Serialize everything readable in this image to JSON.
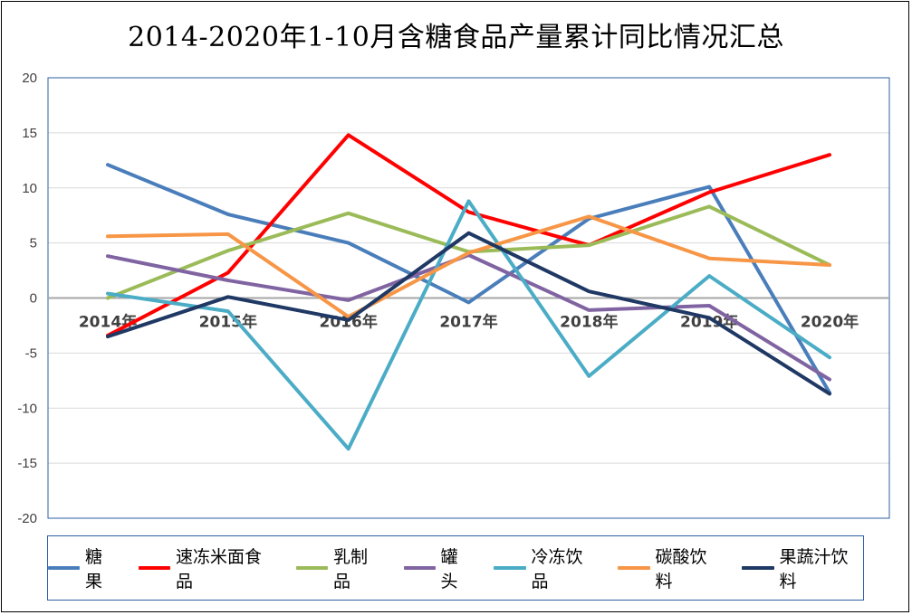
{
  "chart_data": {
    "type": "line",
    "title": "2014-2020年1-10月含糖食品产量累计同比情况汇总",
    "categories": [
      "2014年",
      "2015年",
      "2016年",
      "2017年",
      "2018年",
      "2019年",
      "2020年"
    ],
    "ylim": [
      -20,
      20
    ],
    "yticks": [
      20,
      15,
      10,
      5,
      0,
      -5,
      -10,
      -15,
      -20
    ],
    "grid": true,
    "legend_position": "bottom",
    "series": [
      {
        "name": "糖果",
        "color": "#4a7ebb",
        "values": [
          12.1,
          7.6,
          5.0,
          -0.4,
          7.2,
          10.1,
          -8.6
        ]
      },
      {
        "name": "速冻米面食品",
        "color": "#ff0000",
        "values": [
          -3.4,
          2.3,
          14.8,
          7.8,
          4.8,
          9.6,
          13.0
        ]
      },
      {
        "name": "乳制品",
        "color": "#9bbb59",
        "values": [
          0.0,
          4.3,
          7.7,
          4.2,
          4.8,
          8.3,
          3.0
        ]
      },
      {
        "name": "罐头",
        "color": "#8064a2",
        "values": [
          3.8,
          1.6,
          -0.2,
          3.9,
          -1.1,
          -0.7,
          -7.4
        ]
      },
      {
        "name": "冷冻饮品",
        "color": "#4bacc6",
        "values": [
          0.4,
          -1.2,
          -13.7,
          8.8,
          -7.1,
          2.0,
          -5.4
        ]
      },
      {
        "name": "碳酸饮料",
        "color": "#f79646",
        "values": [
          5.6,
          5.8,
          -1.7,
          4.1,
          7.4,
          3.6,
          3.0
        ]
      },
      {
        "name": "果蔬汁饮料",
        "color": "#1f3864",
        "values": [
          -3.5,
          0.1,
          -2.0,
          5.9,
          0.6,
          -1.8,
          -8.7
        ]
      }
    ]
  }
}
